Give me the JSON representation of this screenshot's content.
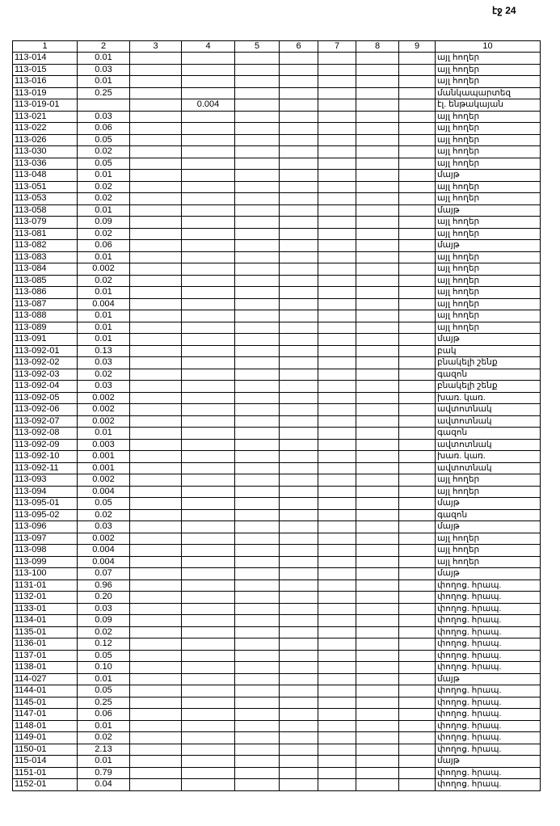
{
  "page_label": "էջ 24",
  "table": {
    "headers": [
      "1",
      "2",
      "3",
      "4",
      "5",
      "6",
      "7",
      "8",
      "9",
      "10"
    ],
    "rows": [
      [
        "113-014",
        "0.01",
        "",
        "այլ հողեր"
      ],
      [
        "113-015",
        "0.03",
        "",
        "այլ հողեր"
      ],
      [
        "113-016",
        "0.01",
        "",
        "այլ հողեր"
      ],
      [
        "113-019",
        "0.25",
        "",
        "մանկապարտեզ"
      ],
      [
        "113-019-01",
        "",
        "0.004",
        "էլ. ենթակայան"
      ],
      [
        "113-021",
        "0.03",
        "",
        "այլ հողեր"
      ],
      [
        "113-022",
        "0.06",
        "",
        "այլ հողեր"
      ],
      [
        "113-026",
        "0.05",
        "",
        "այլ հողեր"
      ],
      [
        "113-030",
        "0.02",
        "",
        "այլ հողեր"
      ],
      [
        "113-036",
        "0.05",
        "",
        "այլ հողեր"
      ],
      [
        "113-048",
        "0.01",
        "",
        "մայթ"
      ],
      [
        "113-051",
        "0.02",
        "",
        "այլ հողեր"
      ],
      [
        "113-053",
        "0.02",
        "",
        "այլ հողեր"
      ],
      [
        "113-058",
        "0.01",
        "",
        "մայթ"
      ],
      [
        "113-079",
        "0.09",
        "",
        "այլ հողեր"
      ],
      [
        "113-081",
        "0.02",
        "",
        "այլ հողեր"
      ],
      [
        "113-082",
        "0.06",
        "",
        "մայթ"
      ],
      [
        "113-083",
        "0.01",
        "",
        "այլ հողեր"
      ],
      [
        "113-084",
        "0.002",
        "",
        "այլ հողեր"
      ],
      [
        "113-085",
        "0.02",
        "",
        "այլ հողեր"
      ],
      [
        "113-086",
        "0.01",
        "",
        "այլ հողեր"
      ],
      [
        "113-087",
        "0.004",
        "",
        "այլ հողեր"
      ],
      [
        "113-088",
        "0.01",
        "",
        "այլ հողեր"
      ],
      [
        "113-089",
        "0.01",
        "",
        "այլ հողեր"
      ],
      [
        "113-091",
        "0.01",
        "",
        "մայթ"
      ],
      [
        "113-092-01",
        "0.13",
        "",
        "բակ"
      ],
      [
        "113-092-02",
        "0.03",
        "",
        "բնակելի շենք"
      ],
      [
        "113-092-03",
        "0.02",
        "",
        "գազոն"
      ],
      [
        "113-092-04",
        "0.03",
        "",
        "բնակելի շենք"
      ],
      [
        "113-092-05",
        "0.002",
        "",
        "խառ. կառ."
      ],
      [
        "113-092-06",
        "0.002",
        "",
        "ավտոտնակ"
      ],
      [
        "113-092-07",
        "0.002",
        "",
        "ավտոտնակ"
      ],
      [
        "113-092-08",
        "0.01",
        "",
        "գազոն"
      ],
      [
        "113-092-09",
        "0.003",
        "",
        "ավտոտնակ"
      ],
      [
        "113-092-10",
        "0.001",
        "",
        "խառ. կառ."
      ],
      [
        "113-092-11",
        "0.001",
        "",
        "ավտոտնակ"
      ],
      [
        "113-093",
        "0.002",
        "",
        "այլ հողեր"
      ],
      [
        "113-094",
        "0.004",
        "",
        "այլ հողեր"
      ],
      [
        "113-095-01",
        "0.05",
        "",
        "մայթ"
      ],
      [
        "113-095-02",
        "0.02",
        "",
        "գազոն"
      ],
      [
        "113-096",
        "0.03",
        "",
        "մայթ"
      ],
      [
        "113-097",
        "0.002",
        "",
        "այլ հողեր"
      ],
      [
        "113-098",
        "0.004",
        "",
        "այլ հողեր"
      ],
      [
        "113-099",
        "0.004",
        "",
        "այլ հողեր"
      ],
      [
        "113-100",
        "0.07",
        "",
        "մայթ"
      ],
      [
        "1131-01",
        "0.96",
        "",
        "փողոց. հրապ."
      ],
      [
        "1132-01",
        "0.20",
        "",
        "փողոց. հրապ."
      ],
      [
        "1133-01",
        "0.03",
        "",
        "փողոց. հրապ."
      ],
      [
        "1134-01",
        "0.09",
        "",
        "փողոց. հրապ."
      ],
      [
        "1135-01",
        "0.02",
        "",
        "փողոց. հրապ."
      ],
      [
        "1136-01",
        "0.12",
        "",
        "փողոց. հրապ."
      ],
      [
        "1137-01",
        "0.05",
        "",
        "փողոց. հրապ."
      ],
      [
        "1138-01",
        "0.10",
        "",
        "փողոց. հրապ."
      ],
      [
        "114-027",
        "0.01",
        "",
        "մայթ"
      ],
      [
        "1144-01",
        "0.05",
        "",
        "փողոց. հրապ."
      ],
      [
        "1145-01",
        "0.25",
        "",
        "փողոց. հրապ."
      ],
      [
        "1147-01",
        "0.06",
        "",
        "փողոց. հրապ."
      ],
      [
        "1148-01",
        "0.01",
        "",
        "փողոց. հրապ."
      ],
      [
        "1149-01",
        "0.02",
        "",
        "փողոց. հրապ."
      ],
      [
        "1150-01",
        "2.13",
        "",
        "փողոց. հրապ."
      ],
      [
        "115-014",
        "0.01",
        "",
        "մայթ"
      ],
      [
        "1151-01",
        "0.79",
        "",
        "փողոց. հրապ."
      ],
      [
        "1152-01",
        "0.04",
        "",
        "փողոց. հրապ."
      ]
    ]
  }
}
